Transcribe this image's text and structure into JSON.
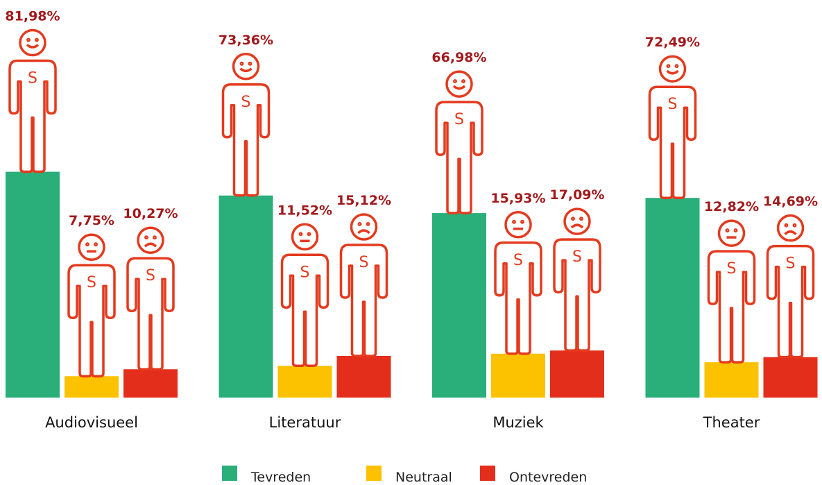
{
  "chart_data": {
    "type": "bar",
    "categories": [
      "Audiovisueel",
      "Literatuur",
      "Muziek",
      "Theater"
    ],
    "series": [
      {
        "name": "Tevreden",
        "color": "#2aaf7b",
        "values": [
          81.98,
          73.36,
          66.98,
          72.49
        ],
        "value_labels": [
          "81,98%",
          "73,36%",
          "66,98%",
          "72,49%"
        ]
      },
      {
        "name": "Neutraal",
        "color": "#fcc200",
        "values": [
          7.75,
          11.52,
          15.93,
          12.82
        ],
        "value_labels": [
          "7,75%",
          "11,52%",
          "15,93%",
          "12,82%"
        ]
      },
      {
        "name": "Ontevreden",
        "color": "#e42e1c",
        "values": [
          10.27,
          15.12,
          17.09,
          14.69
        ],
        "value_labels": [
          "10,27%",
          "15,12%",
          "17,09%",
          "14,69%"
        ]
      }
    ]
  }
}
